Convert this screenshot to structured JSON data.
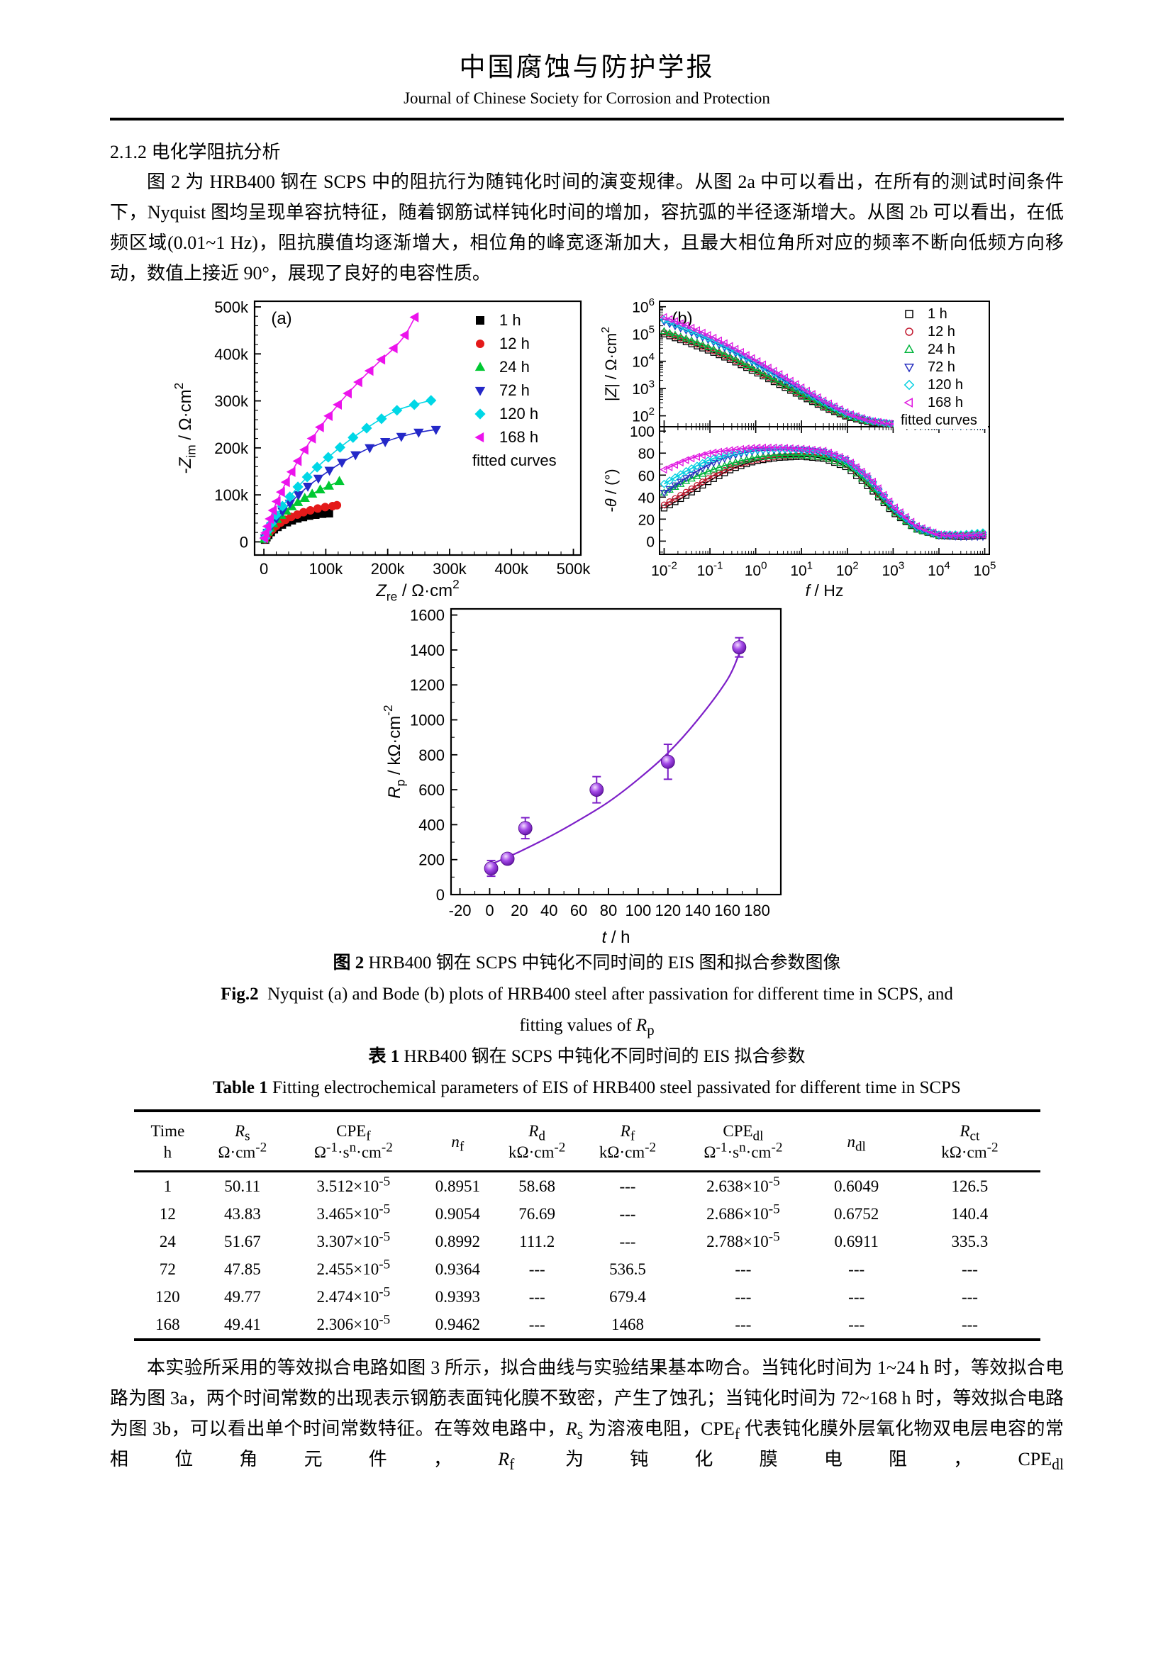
{
  "journal": {
    "title_zh": "中国腐蚀与防护学报",
    "title_en": "Journal of Chinese Society for Corrosion and Protection"
  },
  "section": {
    "heading": "2.1.2 电化学阻抗分析",
    "paragraph1": "图 2 为 HRB400 钢在 SCPS 中的阻抗行为随钝化时间的演变规律。从图 2a 中可以看出，在所有的测试时间条件下，Nyquist 图均呈现单容抗特征，随着钢筋试样钝化时间的增加，容抗弧的半径逐渐增大。从图 2b 可以看出，在低频区域(0.01~1 Hz)，阻抗膜值均逐渐增大，相位角的峰宽逐渐加大，且最大相位角所对应的频率不断向低频方向移动，数值上接近 90°，展现了良好的电容性质。",
    "paragraph2": "本实验所采用的等效拟合电路如图 3 所示，拟合曲线与实验结果基本吻合。当钝化时间为 1~24 h 时，等效拟合电路为图 3a，两个时间常数的出现表示钢筋表面钝化膜不致密，产生了蚀孔；当钝化时间为 72~168 h 时，等效拟合电路为图 3b，可以看出单个时间常数特征。在等效电路中，*R*_{s} 为溶液电阻，CPE_{f} 代表钝化膜外层氧化物双电层电容的常相位角元件，*R*_{f} 为钝化膜电阻，CPE_{dl}"
  },
  "figure2": {
    "caption_zh_prefix": "图 2",
    "caption_zh_rest": "HRB400 钢在 SCPS 中钝化不同时间的 EIS 图和拟合参数图像",
    "caption_en_prefix": "Fig.2",
    "caption_en_line1": "Nyquist (a) and Bode (b) plots of HRB400 steel after passivation for different time in SCPS, and",
    "caption_en_line2": "fitting values of *R*_{p}"
  },
  "table1": {
    "caption_zh_prefix": "表 1",
    "caption_zh_rest": "HRB400 钢在 SCPS 中钝化不同时间的 EIS 拟合参数",
    "caption_en_prefix": "Table 1",
    "caption_en_rest": "Fitting electrochemical parameters of EIS of HRB400 steel passivated for different time in SCPS",
    "columns": [
      {
        "line1": "Time",
        "line2": "h",
        "width": 7.5
      },
      {
        "line1": "*R*_{s}",
        "line2": "Ω·cm^{-2}",
        "width": 9
      },
      {
        "line1": "CPE_{f}",
        "line2": "Ω^{-1}·s^{n}·cm^{-2}",
        "width": 15.5
      },
      {
        "line1": "*n*_{f}",
        "line2": "",
        "width": 7.5
      },
      {
        "line1": "*R*_{d}",
        "line2": "kΩ·cm^{-2}",
        "width": 10
      },
      {
        "line1": "*R*_{f}",
        "line2": "kΩ·cm^{-2}",
        "width": 10
      },
      {
        "line1": "CPE_{dl}",
        "line2": "Ω^{-1}·s^{n}·cm^{-2}",
        "width": 15.5
      },
      {
        "line1": "*n*_{dl}",
        "line2": "",
        "width": 9.5
      },
      {
        "line1": "*R*_{ct}",
        "line2": "kΩ·cm^{-2}",
        "width": 15.5
      }
    ],
    "rows": [
      [
        "1",
        "50.11",
        "3.512×10^{-5}",
        "0.8951",
        "58.68",
        "---",
        "2.638×10^{-5}",
        "0.6049",
        "126.5"
      ],
      [
        "12",
        "43.83",
        "3.465×10^{-5}",
        "0.9054",
        "76.69",
        "---",
        "2.686×10^{-5}",
        "0.6752",
        "140.4"
      ],
      [
        "24",
        "51.67",
        "3.307×10^{-5}",
        "0.8992",
        "111.2",
        "---",
        "2.788×10^{-5}",
        "0.6911",
        "335.3"
      ],
      [
        "72",
        "47.85",
        "2.455×10^{-5}",
        "0.9364",
        "---",
        "536.5",
        "---",
        "---",
        "---"
      ],
      [
        "120",
        "49.77",
        "2.474×10^{-5}",
        "0.9393",
        "---",
        "679.4",
        "---",
        "---",
        "---"
      ],
      [
        "168",
        "49.41",
        "2.306×10^{-5}",
        "0.9462",
        "---",
        "1468",
        "---",
        "---",
        "---"
      ]
    ]
  },
  "chart_data": [
    {
      "id": "nyquist",
      "type": "scatter",
      "panel_label": "(a)",
      "xlabel": "*Z*_{re} / Ω·cm^{2}",
      "ylabel": "-*Z*_{im} / Ω·cm^{2}",
      "units": "kΩ·cm²",
      "xlim": [
        0,
        500
      ],
      "ylim": [
        0,
        500
      ],
      "xticks": [
        0,
        100,
        200,
        300,
        400,
        500
      ],
      "xtick_labels": [
        "0",
        "100k",
        "200k",
        "300k",
        "400k",
        "500k"
      ],
      "yticks": [
        0,
        100,
        200,
        300,
        400,
        500
      ],
      "ytick_labels": [
        "0",
        "100k",
        "200k",
        "300k",
        "400k",
        "500k"
      ],
      "legend_extra": "fitted curves",
      "series": [
        {
          "name": "1 h",
          "color": "#000000",
          "marker": "square",
          "points": [
            [
              2,
              5
            ],
            [
              4,
              10
            ],
            [
              7,
              15
            ],
            [
              11,
              21
            ],
            [
              16,
              27
            ],
            [
              22,
              32
            ],
            [
              29,
              37
            ],
            [
              37,
              42
            ],
            [
              45,
              46
            ],
            [
              54,
              50
            ],
            [
              63,
              53
            ],
            [
              73,
              56
            ],
            [
              83,
              58
            ],
            [
              94,
              60
            ],
            [
              105,
              61
            ]
          ]
        },
        {
          "name": "12 h",
          "color": "#e41a1a",
          "marker": "circle",
          "points": [
            [
              2,
              6
            ],
            [
              5,
              13
            ],
            [
              9,
              20
            ],
            [
              14,
              27
            ],
            [
              20,
              34
            ],
            [
              27,
              41
            ],
            [
              35,
              47
            ],
            [
              44,
              53
            ],
            [
              54,
              58
            ],
            [
              64,
              63
            ],
            [
              75,
              67
            ],
            [
              87,
              71
            ],
            [
              99,
              74
            ],
            [
              111,
              76
            ],
            [
              118,
              78
            ]
          ]
        },
        {
          "name": "24 h",
          "color": "#00c832",
          "marker": "triangle-up",
          "points": [
            [
              1,
              6
            ],
            [
              3,
              13
            ],
            [
              6,
              21
            ],
            [
              10,
              30
            ],
            [
              15,
              39
            ],
            [
              21,
              48
            ],
            [
              28,
              57
            ],
            [
              36,
              66
            ],
            [
              45,
              75
            ],
            [
              55,
              84
            ],
            [
              66,
              93
            ],
            [
              78,
              102
            ],
            [
              91,
              111
            ],
            [
              105,
              119
            ],
            [
              122,
              129
            ]
          ]
        },
        {
          "name": "72 h",
          "color": "#2428c8",
          "marker": "triangle-down",
          "points": [
            [
              2,
              8
            ],
            [
              6,
              20
            ],
            [
              12,
              34
            ],
            [
              20,
              49
            ],
            [
              30,
              65
            ],
            [
              42,
              82
            ],
            [
              56,
              100
            ],
            [
              71,
              118
            ],
            [
              88,
              135
            ],
            [
              106,
              152
            ],
            [
              126,
              169
            ],
            [
              148,
              185
            ],
            [
              171,
              200
            ],
            [
              196,
              213
            ],
            [
              222,
              224
            ],
            [
              250,
              233
            ],
            [
              278,
              239
            ]
          ]
        },
        {
          "name": "120 h",
          "color": "#00d7e6",
          "marker": "diamond",
          "points": [
            [
              2,
              9
            ],
            [
              6,
              23
            ],
            [
              12,
              39
            ],
            [
              20,
              57
            ],
            [
              30,
              76
            ],
            [
              42,
              96
            ],
            [
              55,
              117
            ],
            [
              70,
              138
            ],
            [
              86,
              159
            ],
            [
              104,
              180
            ],
            [
              123,
              201
            ],
            [
              144,
              222
            ],
            [
              166,
              242
            ],
            [
              190,
              262
            ],
            [
              215,
              280
            ],
            [
              243,
              292
            ],
            [
              270,
              301
            ]
          ]
        },
        {
          "name": "168 h",
          "color": "#ec13ec",
          "marker": "triangle-left",
          "points": [
            [
              1,
              8
            ],
            [
              3,
              19
            ],
            [
              6,
              33
            ],
            [
              10,
              49
            ],
            [
              15,
              67
            ],
            [
              21,
              86
            ],
            [
              28,
              106
            ],
            [
              36,
              127
            ],
            [
              45,
              149
            ],
            [
              55,
              172
            ],
            [
              66,
              196
            ],
            [
              78,
              220
            ],
            [
              91,
              244
            ],
            [
              105,
              268
            ],
            [
              120,
              292
            ],
            [
              136,
              316
            ],
            [
              153,
              340
            ],
            [
              171,
              364
            ],
            [
              190,
              388
            ],
            [
              210,
              412
            ],
            [
              228,
              440
            ],
            [
              244,
              478
            ]
          ]
        }
      ]
    },
    {
      "id": "bode",
      "type": "line",
      "panel_label": "(b)",
      "xlabel": "*f* / Hz",
      "x_log_range": [
        -2,
        5
      ],
      "xtick_exponents": [
        -2,
        -1,
        0,
        1,
        2,
        3,
        4,
        5
      ],
      "top": {
        "ylabel": "|*Z*| / Ω·cm^{2}",
        "ytick_exponents": [
          2,
          3,
          4,
          5,
          6
        ]
      },
      "bottom": {
        "ylabel": "-*θ* / (°)",
        "yticks": [
          0,
          20,
          40,
          60,
          80,
          100
        ]
      },
      "logf": [
        -2,
        -1.5,
        -1,
        -0.5,
        0,
        0.5,
        1,
        1.5,
        2,
        2.5,
        3,
        3.5,
        4,
        4.5,
        5
      ],
      "legend_extra": "fitted curves",
      "series": [
        {
          "name": "1 h",
          "color": "#000000",
          "marker": "square",
          "logZ": [
            5.0,
            4.7,
            4.38,
            4.02,
            3.6,
            3.16,
            2.72,
            2.3,
            1.96,
            1.76,
            1.68,
            1.66,
            1.65,
            1.65,
            1.65
          ],
          "phase": [
            30,
            42,
            55,
            66,
            73,
            76,
            77,
            75,
            67,
            48,
            26,
            11,
            5,
            4,
            5
          ]
        },
        {
          "name": "12 h",
          "color": "#c21a30",
          "marker": "circle",
          "logZ": [
            5.06,
            4.76,
            4.44,
            4.07,
            3.65,
            3.21,
            2.76,
            2.33,
            1.98,
            1.77,
            1.69,
            1.66,
            1.65,
            1.65,
            1.65
          ],
          "phase": [
            33,
            45,
            58,
            68,
            74,
            77,
            78,
            76,
            69,
            51,
            28,
            12,
            6,
            5,
            6
          ]
        },
        {
          "name": "24 h",
          "color": "#00b43c",
          "marker": "triangle-up",
          "logZ": [
            5.1,
            4.82,
            4.5,
            4.12,
            3.69,
            3.24,
            2.79,
            2.35,
            1.99,
            1.78,
            1.69,
            1.66,
            1.65,
            1.65,
            1.65
          ],
          "phase": [
            44,
            55,
            64,
            71,
            76,
            78,
            78,
            76,
            69,
            50,
            27,
            11,
            5,
            5,
            7
          ]
        },
        {
          "name": "72 h",
          "color": "#2830c0",
          "marker": "triangle-down",
          "logZ": [
            5.45,
            5.12,
            4.76,
            4.35,
            3.9,
            3.42,
            2.93,
            2.46,
            2.05,
            1.8,
            1.7,
            1.66,
            1.65,
            1.65,
            1.65
          ],
          "phase": [
            44,
            58,
            70,
            78,
            82,
            83,
            83,
            81,
            73,
            55,
            30,
            12,
            5,
            4,
            4
          ]
        },
        {
          "name": "120 h",
          "color": "#00cfe0",
          "marker": "diamond",
          "logZ": [
            5.52,
            5.19,
            4.82,
            4.41,
            3.95,
            3.47,
            2.97,
            2.49,
            2.07,
            1.81,
            1.7,
            1.66,
            1.65,
            1.65,
            1.65
          ],
          "phase": [
            52,
            64,
            74,
            80,
            83,
            84,
            83,
            81,
            73,
            56,
            31,
            13,
            6,
            6,
            8
          ]
        },
        {
          "name": "168 h",
          "color": "#e018e0",
          "marker": "triangle-left",
          "logZ": [
            5.62,
            5.3,
            4.93,
            4.51,
            4.04,
            3.55,
            3.04,
            2.54,
            2.1,
            1.82,
            1.7,
            1.66,
            1.65,
            1.65,
            1.65
          ],
          "phase": [
            65,
            74,
            80,
            83,
            85,
            85,
            84,
            82,
            74,
            57,
            32,
            14,
            6,
            5,
            6
          ]
        }
      ]
    },
    {
      "id": "rp",
      "type": "scatter",
      "xlabel": "*t* / h",
      "ylabel": "*R*_{p} / kΩ·cm^{-2}",
      "xlim": [
        -20,
        180
      ],
      "ylim": [
        0,
        1600
      ],
      "xticks": [
        -20,
        0,
        20,
        40,
        60,
        80,
        100,
        120,
        140,
        160,
        180
      ],
      "yticks": [
        0,
        200,
        400,
        600,
        800,
        1000,
        1200,
        1400,
        1600
      ],
      "point_color": "#8a2be2",
      "line_color": "#7d1fc8",
      "points": {
        "x": [
          1,
          12,
          24,
          72,
          120,
          168
        ],
        "y": [
          150,
          205,
          380,
          600,
          760,
          1415
        ],
        "yerr": [
          45,
          25,
          60,
          75,
          100,
          55
        ]
      },
      "fit_x": [
        0,
        20,
        40,
        60,
        80,
        100,
        120,
        140,
        160,
        168
      ],
      "fit_y": [
        170,
        245,
        330,
        425,
        530,
        660,
        810,
        1000,
        1230,
        1380
      ]
    }
  ]
}
